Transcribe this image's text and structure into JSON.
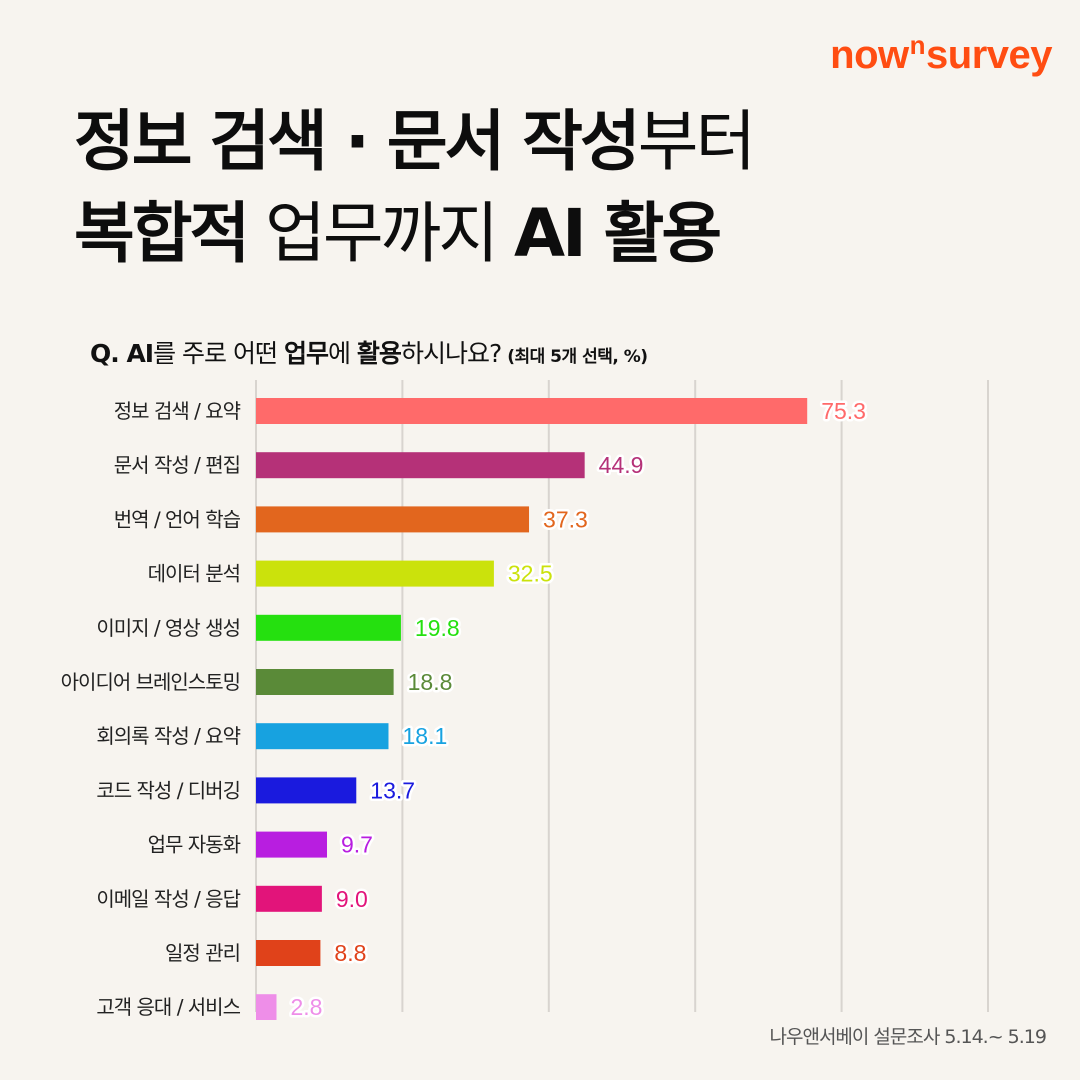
{
  "brand": {
    "name_pre": "now",
    "name_sup": "n",
    "name_post": "survey"
  },
  "title": {
    "line1_bold_a": "정보 검색 · 문서 작성",
    "line1_light": "부터",
    "line2_bold_a": "복합적",
    "line2_light": " 업무까지 ",
    "line2_bold_b": "AI 활용"
  },
  "question": {
    "bold_a": "Q. AI",
    "light_a": "를 주로 어떤 ",
    "bold_b": "업무",
    "light_b": "에 ",
    "bold_c": "활용",
    "light_c": "하시나요?",
    "note": "(최대 5개 선택, %)"
  },
  "source": "나우앤서베이 설문조사 5.14.~ 5.19",
  "chart_data": {
    "type": "bar",
    "orientation": "horizontal",
    "categories": [
      "정보 검색 / 요약",
      "문서 작성 / 편집",
      "번역 / 언어 학습",
      "데이터 분석",
      "이미지 / 영상 생성",
      "아이디어 브레인스토밍",
      "회의록 작성 / 요약",
      "코드 작성 / 디버깅",
      "업무 자동화",
      "이메일 작성 / 응답",
      "일정 관리",
      "고객 응대 / 서비스"
    ],
    "values": [
      75.3,
      44.9,
      37.3,
      32.5,
      19.8,
      18.8,
      18.1,
      13.7,
      9.7,
      9.0,
      8.8,
      2.8
    ],
    "labels": [
      "75.3",
      "44.9",
      "37.3",
      "32.5",
      "19.8",
      "18.8",
      "18.1",
      "13.7",
      "9.7",
      "9.0",
      "8.8",
      "2.8"
    ],
    "colors": [
      "#ff6a6a",
      "#b53178",
      "#e2661e",
      "#cbe20c",
      "#25e00f",
      "#5a8a38",
      "#17a2e0",
      "#1a1ade",
      "#b81ee0",
      "#e2147a",
      "#e0421a",
      "#ee8ee8"
    ],
    "xlim": [
      0,
      100
    ],
    "grid": true,
    "unit": "%"
  }
}
